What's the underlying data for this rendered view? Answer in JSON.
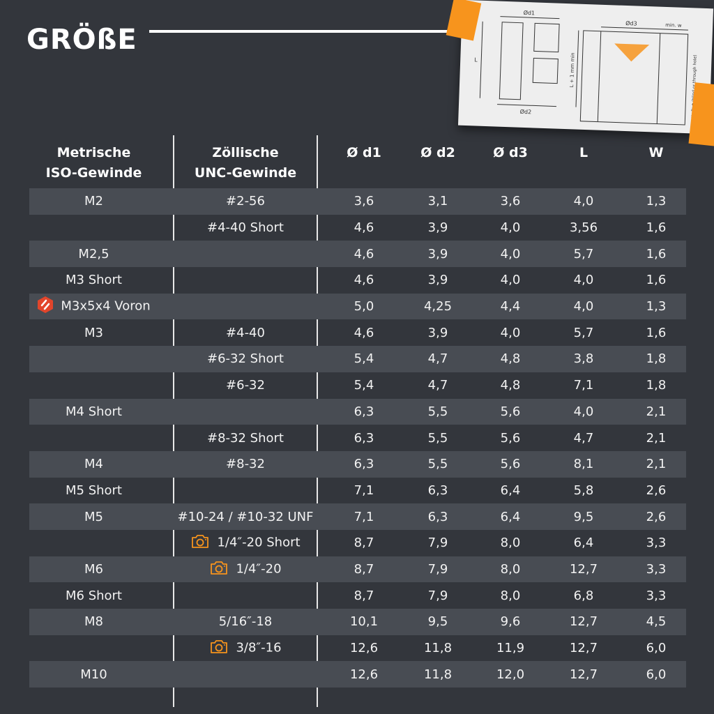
{
  "title": "GRÖßE",
  "diagram": {
    "labels": [
      "Ød1",
      "Ød2",
      "L",
      "Ød3",
      "min. w",
      "L + 1 mm min",
      "Plastic-Part (blind or through hole)"
    ]
  },
  "colors": {
    "background": "#33363c",
    "stripe": "#484c53",
    "accent": "#f7941d",
    "voron": "#e2452b"
  },
  "table": {
    "headers": [
      "Metrische\nISO-Gewinde",
      "Zöllische\nUNC-Gewinde",
      "Ø d1",
      "Ø d2",
      "Ø d3",
      "L",
      "W"
    ],
    "rows": [
      {
        "metric": "M2",
        "unc": "#2-56",
        "d1": "3,6",
        "d2": "3,1",
        "d3": "3,6",
        "L": "4,0",
        "W": "1,3"
      },
      {
        "metric": "",
        "unc": "#4-40 Short",
        "d1": "4,6",
        "d2": "3,9",
        "d3": "4,0",
        "L": "3,56",
        "W": "1,6"
      },
      {
        "metric": "M2,5",
        "unc": "",
        "d1": "4,6",
        "d2": "3,9",
        "d3": "4,0",
        "L": "5,7",
        "W": "1,6"
      },
      {
        "metric": "M3 Short",
        "unc": "",
        "d1": "4,6",
        "d2": "3,9",
        "d3": "4,0",
        "L": "4,0",
        "W": "1,6"
      },
      {
        "metric": "M3x5x4 Voron",
        "metric_icon": "voron-logo-icon",
        "unc": "",
        "d1": "5,0",
        "d2": "4,25",
        "d3": "4,4",
        "L": "4,0",
        "W": "1,3"
      },
      {
        "metric": "M3",
        "unc": "#4-40",
        "d1": "4,6",
        "d2": "3,9",
        "d3": "4,0",
        "L": "5,7",
        "W": "1,6"
      },
      {
        "metric": "",
        "unc": "#6-32 Short",
        "d1": "5,4",
        "d2": "4,7",
        "d3": "4,8",
        "L": "3,8",
        "W": "1,8"
      },
      {
        "metric": "",
        "unc": "#6-32",
        "d1": "5,4",
        "d2": "4,7",
        "d3": "4,8",
        "L": "7,1",
        "W": "1,8"
      },
      {
        "metric": "M4 Short",
        "unc": "",
        "d1": "6,3",
        "d2": "5,5",
        "d3": "5,6",
        "L": "4,0",
        "W": "2,1"
      },
      {
        "metric": "",
        "unc": "#8-32 Short",
        "d1": "6,3",
        "d2": "5,5",
        "d3": "5,6",
        "L": "4,7",
        "W": "2,1"
      },
      {
        "metric": "M4",
        "unc": "#8-32",
        "d1": "6,3",
        "d2": "5,5",
        "d3": "5,6",
        "L": "8,1",
        "W": "2,1"
      },
      {
        "metric": "M5 Short",
        "unc": "",
        "d1": "7,1",
        "d2": "6,3",
        "d3": "6,4",
        "L": "5,8",
        "W": "2,6"
      },
      {
        "metric": "M5",
        "unc": "#10-24 / #10-32 UNF",
        "d1": "7,1",
        "d2": "6,3",
        "d3": "6,4",
        "L": "9,5",
        "W": "2,6"
      },
      {
        "metric": "",
        "unc": "1/4″-20 Short",
        "unc_icon": "camera-icon",
        "d1": "8,7",
        "d2": "7,9",
        "d3": "8,0",
        "L": "6,4",
        "W": "3,3"
      },
      {
        "metric": "M6",
        "unc": "1/4″-20",
        "unc_icon": "camera-icon",
        "d1": "8,7",
        "d2": "7,9",
        "d3": "8,0",
        "L": "12,7",
        "W": "3,3"
      },
      {
        "metric": "M6 Short",
        "unc": "",
        "d1": "8,7",
        "d2": "7,9",
        "d3": "8,0",
        "L": "6,8",
        "W": "3,3"
      },
      {
        "metric": "M8",
        "unc": "5/16″-18",
        "d1": "10,1",
        "d2": "9,5",
        "d3": "9,6",
        "L": "12,7",
        "W": "4,5"
      },
      {
        "metric": "",
        "unc": "3/8″-16",
        "unc_icon": "camera-icon",
        "d1": "12,6",
        "d2": "11,8",
        "d3": "11,9",
        "L": "12,7",
        "W": "6,0"
      },
      {
        "metric": "M10",
        "unc": "",
        "d1": "12,6",
        "d2": "11,8",
        "d3": "12,0",
        "L": "12,7",
        "W": "6,0"
      }
    ]
  }
}
